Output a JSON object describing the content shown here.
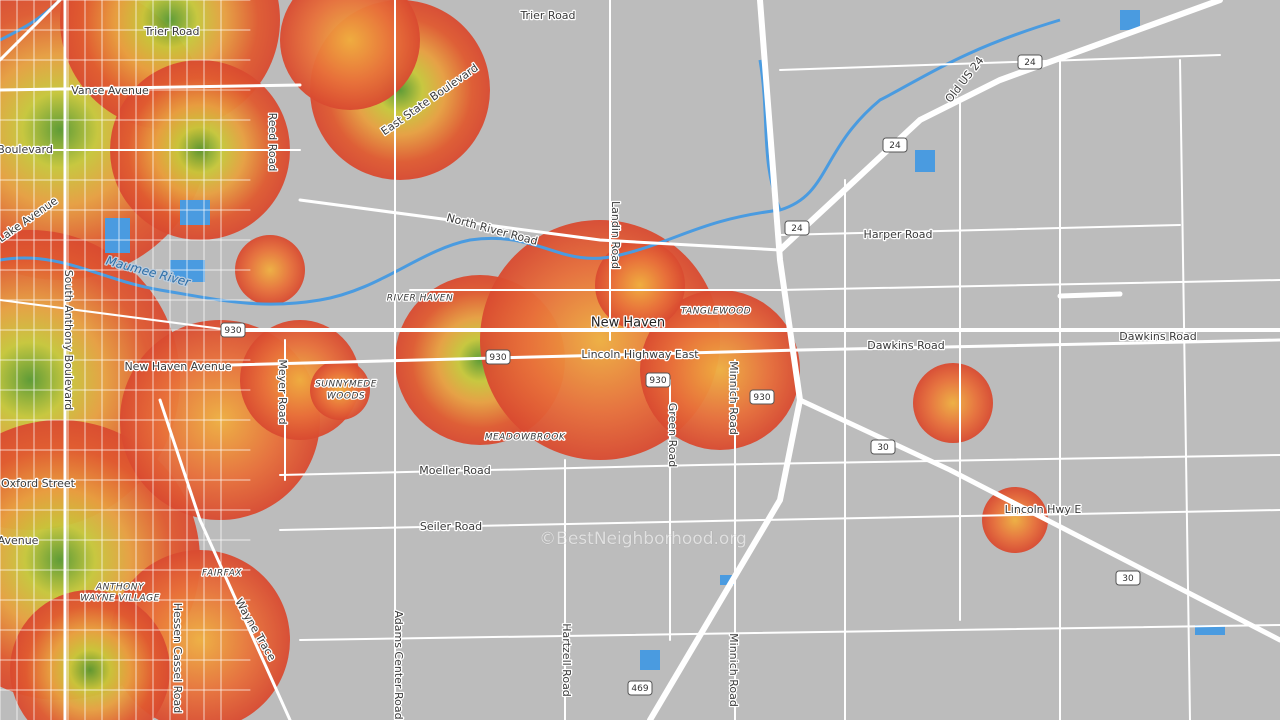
{
  "road_labels": [
    "Trier Road",
    "Trier Road",
    "Vance Avenue",
    "Boulevard",
    "East State Boulevard",
    "Reed Road",
    "North River Road",
    "Lake Avenue",
    "South Anthony Boulevard",
    "Landin Road",
    "Harper Road",
    "Old US 24",
    "Dawkins Road",
    "Dawkins Road",
    "Lincoln Highway East",
    "New Haven Avenue",
    "Meyer Road",
    "Minnich Road",
    "Green Road",
    "Moeller Road",
    "Oxford Street",
    "Seiler Road",
    "Lincoln Hwy E",
    "Avenue",
    "Wayne Trace",
    "Hessen Cassel Road",
    "Adams Center Road",
    "Hartzell Road",
    "Minnich Road"
  ],
  "river_label": "Maumee River",
  "town_label": "New Haven",
  "place_labels": [
    "RIVER HAVEN",
    "TANGLEWOOD",
    "SUNNYMEDE",
    "WOODS",
    "MEADOWBROOK",
    "FAIRFAX",
    "ANTHONY",
    "WAYNE VILLAGE"
  ],
  "shields": [
    "930",
    "930",
    "930",
    "930",
    "24",
    "24",
    "24",
    "30",
    "30",
    "469"
  ],
  "watermark": "©BestNeighborhood.org"
}
